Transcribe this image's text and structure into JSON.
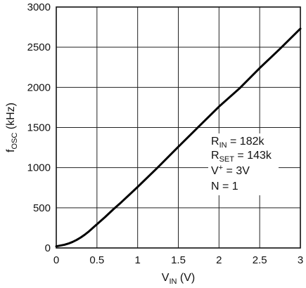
{
  "chart_data": {
    "type": "line",
    "xlabel": {
      "main": "V",
      "sub": "IN",
      "unit": " (V)"
    },
    "ylabel": {
      "main": "f",
      "sub": "OSC",
      "unit": " (kHz)"
    },
    "xlim": [
      0,
      3
    ],
    "ylim": [
      0,
      3000
    ],
    "xticks": [
      0,
      0.5,
      1,
      1.5,
      2,
      2.5,
      3
    ],
    "xtick_labels": [
      "0",
      "0.5",
      "1",
      "1.5",
      "2",
      "2.5",
      "3"
    ],
    "yticks": [
      0,
      500,
      1000,
      1500,
      2000,
      2500,
      3000
    ],
    "ytick_labels": [
      "0",
      "500",
      "1000",
      "1500",
      "2000",
      "2500",
      "3000"
    ],
    "grid": true,
    "series": [
      {
        "x": [
          0,
          0.05,
          0.1,
          0.15,
          0.2,
          0.25,
          0.3,
          0.35,
          0.4,
          0.45,
          0.5,
          0.6,
          0.7,
          0.8,
          0.9,
          1.0,
          1.25,
          1.5,
          1.75,
          2.0,
          2.25,
          2.5,
          2.75,
          3.0
        ],
        "y": [
          20,
          30,
          40,
          55,
          75,
          100,
          130,
          165,
          205,
          250,
          295,
          385,
          480,
          570,
          665,
          760,
          1005,
          1260,
          1510,
          1760,
          1985,
          2240,
          2480,
          2730
        ]
      }
    ],
    "annotations": [
      {
        "main": "R",
        "sub": "IN",
        "rest": " = 182k"
      },
      {
        "main": "R",
        "sub": "SET",
        "rest": " = 143k"
      },
      {
        "main": "V",
        "sup": "+",
        "rest": " = 3V"
      },
      {
        "main": "N = 1"
      }
    ]
  }
}
